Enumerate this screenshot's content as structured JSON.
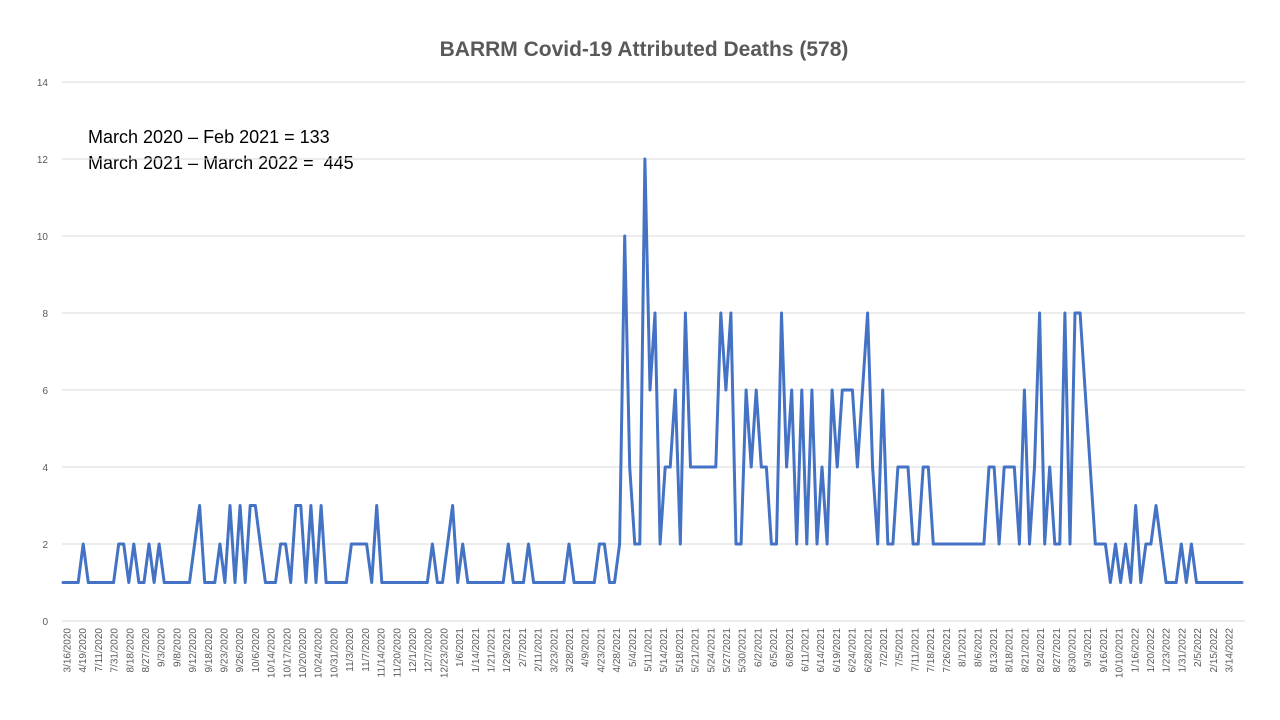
{
  "chart_data": {
    "type": "line",
    "title": "BARRM Covid-19 Attributed Deaths (578)",
    "xlabel": "",
    "ylabel": "",
    "ylim": [
      0,
      14
    ],
    "yticks": [
      "0",
      "2",
      "4",
      "6",
      "8",
      "10",
      "12",
      "14"
    ],
    "grid": true,
    "legend": "none",
    "line_color": "#4472C4",
    "annotations": [
      "March 2020 – Feb 2021 = 133",
      "March 2021 – March 2022 =  445"
    ],
    "x_tick_labels": [
      "3/16/2020",
      "4/19/2020",
      "7/11/2020",
      "7/31/2020",
      "8/18/2020",
      "8/27/2020",
      "9/3/2020",
      "9/8/2020",
      "9/12/2020",
      "9/18/2020",
      "9/23/2020",
      "9/26/2020",
      "10/6/2020",
      "10/14/2020",
      "10/17/2020",
      "10/20/2020",
      "10/24/2020",
      "10/31/2020",
      "11/3/2020",
      "11/7/2020",
      "11/14/2020",
      "11/20/2020",
      "12/1/2020",
      "12/7/2020",
      "12/23/2020",
      "1/6/2021",
      "1/14/2021",
      "1/21/2021",
      "1/29/2021",
      "2/7/2021",
      "2/11/2021",
      "3/23/2021",
      "3/28/2021",
      "4/9/2021",
      "4/23/2021",
      "4/28/2021",
      "5/4/2021",
      "5/11/2021",
      "5/14/2021",
      "5/18/2021",
      "5/21/2021",
      "5/24/2021",
      "5/27/2021",
      "5/30/2021",
      "6/2/2021",
      "6/5/2021",
      "6/8/2021",
      "6/11/2021",
      "6/14/2021",
      "6/19/2021",
      "6/24/2021",
      "6/28/2021",
      "7/2/2021",
      "7/5/2021",
      "7/11/2021",
      "7/18/2021",
      "7/26/2021",
      "8/1/2021",
      "8/6/2021",
      "8/13/2021",
      "8/18/2021",
      "8/21/2021",
      "8/24/2021",
      "8/27/2021",
      "8/30/2021",
      "9/3/2021",
      "9/16/2021",
      "10/10/2021",
      "1/16/2022",
      "1/20/2022",
      "1/23/2022",
      "1/31/2022",
      "2/5/2022",
      "2/15/2022",
      "3/14/2022"
    ],
    "series": [
      {
        "values": [
          1,
          1,
          1,
          1,
          2,
          1,
          1,
          1,
          1,
          1,
          1,
          2,
          2,
          1,
          2,
          1,
          1,
          2,
          1,
          2,
          1,
          1,
          1,
          1,
          1,
          1,
          2,
          3,
          1,
          1,
          1,
          2,
          1,
          3,
          1,
          3,
          1,
          3,
          3,
          2,
          1,
          1,
          1,
          2,
          2,
          1,
          3,
          3,
          1,
          3,
          1,
          3,
          1,
          1,
          1,
          1,
          1,
          2,
          2,
          2,
          2,
          1,
          3,
          1,
          1,
          1,
          1,
          1,
          1,
          1,
          1,
          1,
          1,
          2,
          1,
          1,
          2,
          3,
          1,
          2,
          1,
          1,
          1,
          1,
          1,
          1,
          1,
          1,
          2,
          1,
          1,
          1,
          2,
          1,
          1,
          1,
          1,
          1,
          1,
          1,
          2,
          1,
          1,
          1,
          1,
          1,
          2,
          2,
          1,
          1,
          2,
          10,
          4,
          2,
          2,
          12,
          6,
          8,
          2,
          4,
          4,
          6,
          2,
          8,
          4,
          4,
          4,
          4,
          4,
          4,
          8,
          6,
          8,
          2,
          2,
          6,
          4,
          6,
          4,
          4,
          2,
          2,
          8,
          4,
          6,
          2,
          6,
          2,
          6,
          2,
          4,
          2,
          6,
          4,
          6,
          6,
          6,
          4,
          6,
          8,
          4,
          2,
          6,
          2,
          2,
          4,
          4,
          4,
          2,
          2,
          4,
          4,
          2,
          2,
          2,
          2,
          2,
          2,
          2,
          2,
          2,
          2,
          2,
          4,
          4,
          2,
          4,
          4,
          4,
          2,
          6,
          2,
          4,
          8,
          2,
          4,
          2,
          2,
          8,
          2,
          8,
          8,
          6,
          4,
          2,
          2,
          2,
          1,
          2,
          1,
          2,
          1,
          3,
          1,
          2,
          2,
          3,
          2,
          1,
          1,
          1,
          2,
          1,
          2,
          1,
          1,
          1,
          1,
          1,
          1,
          1,
          1,
          1,
          1
        ]
      }
    ]
  }
}
